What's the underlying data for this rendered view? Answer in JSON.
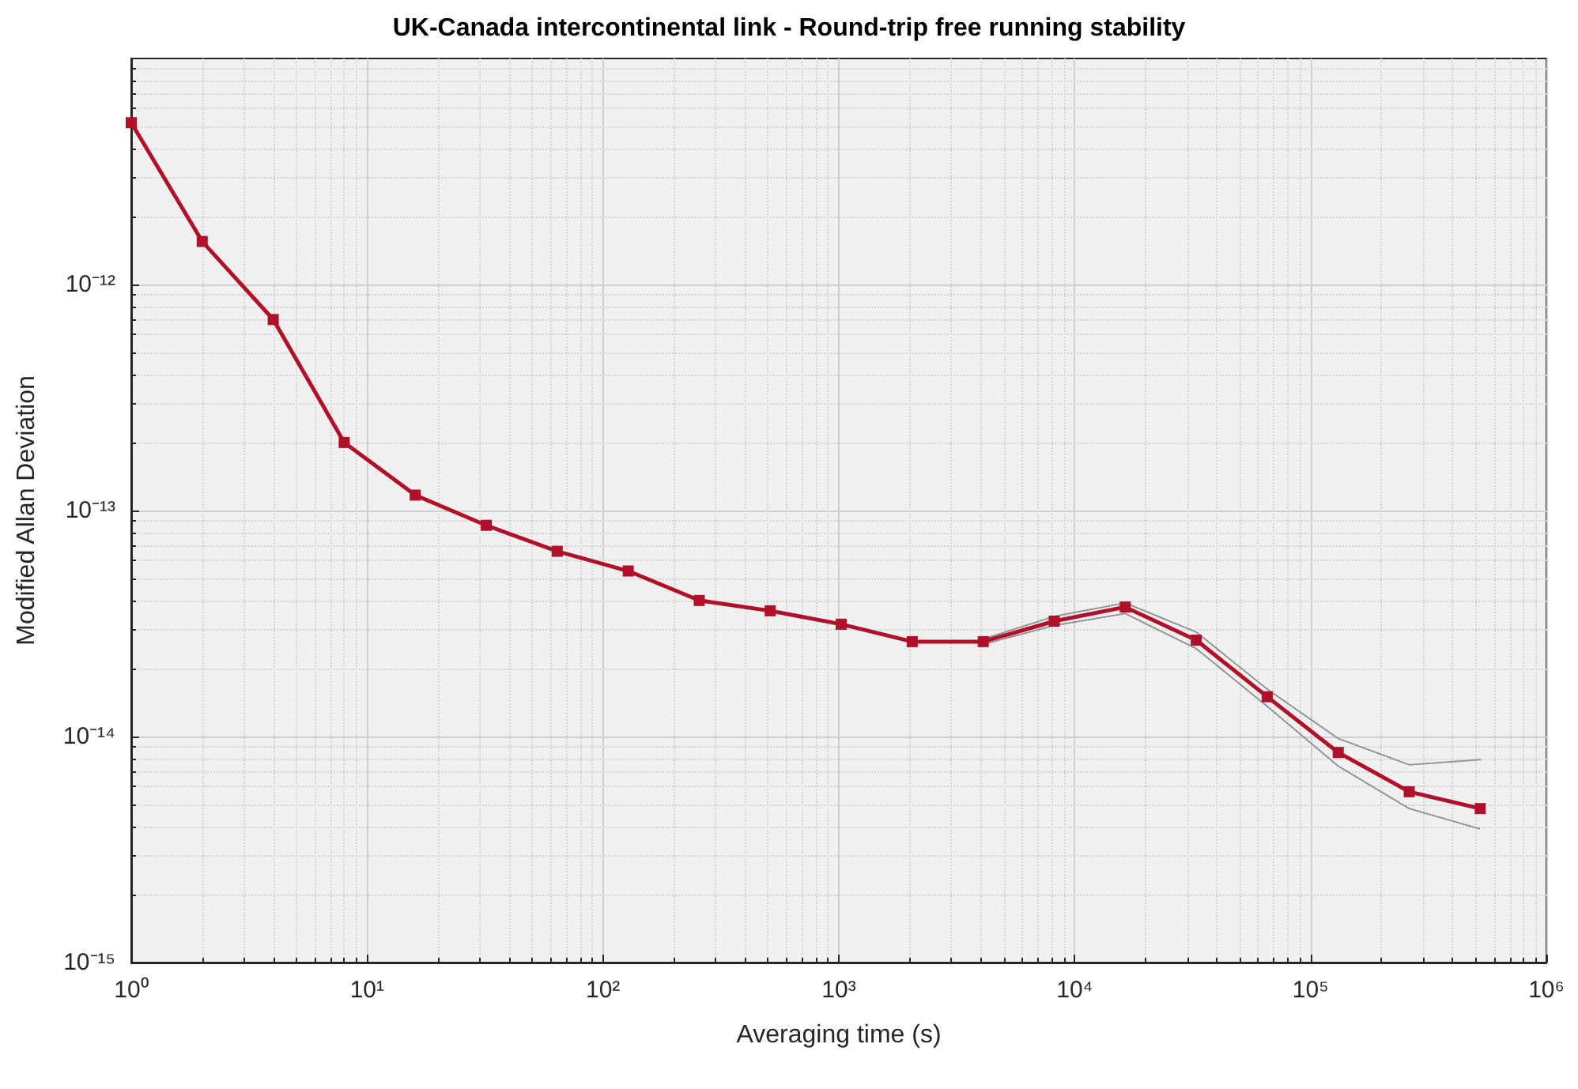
{
  "chart_data": {
    "type": "line",
    "title": "UK-Canada intercontinental link - Round-trip free running stability",
    "xlabel": "Averaging time (s)",
    "ylabel": "Modified Allan Deviation",
    "x": [
      1,
      2,
      4,
      8,
      16,
      32,
      64,
      128,
      256,
      512,
      1024,
      2048,
      4096,
      8192,
      16384,
      32768,
      65536,
      131072,
      262144,
      524288
    ],
    "series": [
      {
        "type": "line",
        "color": "#8c8c8c",
        "line_style": "dotted",
        "marker": "none",
        "x": [
          4096,
          8192,
          16384,
          32768,
          65536,
          131072,
          262144,
          524288
        ],
        "values": [
          2.56e-14,
          3.1e-14,
          3.5e-14,
          2.45e-14,
          1.36e-14,
          7.4e-15,
          4.8e-15,
          3.9e-15
        ]
      },
      {
        "type": "line",
        "color": "#8c8c8c",
        "line_style": "dotted",
        "marker": "none",
        "x": [
          4096,
          8192,
          16384,
          32768,
          65536,
          131072,
          262144,
          524288
        ],
        "values": [
          2.7e-14,
          3.4e-14,
          3.9e-14,
          2.9e-14,
          1.62e-14,
          9.8e-15,
          7.5e-15,
          7.9e-15
        ]
      },
      {
        "color": "#b0102a",
        "values": [
          5.2e-12,
          1.55e-12,
          7e-13,
          2e-13,
          1.17e-13,
          8.6e-14,
          6.6e-14,
          5.4e-14,
          4e-14,
          3.6e-14,
          3.14e-14,
          2.63e-14,
          2.63e-14,
          3.24e-14,
          3.74e-14,
          2.67e-14,
          1.5e-14,
          8.5e-15,
          5.7e-15,
          4.8e-15
        ]
      }
    ],
    "log": "xy",
    "xlim": [
      1,
      1000000
    ],
    "ylim": [
      1e-15,
      1e-11
    ],
    "xticks": [
      {
        "value": 1,
        "label": "10⁰"
      },
      {
        "value": 10,
        "label": "10¹"
      },
      {
        "value": 100,
        "label": "10²"
      },
      {
        "value": 1000,
        "label": "10³"
      },
      {
        "value": 10000,
        "label": "10⁴"
      },
      {
        "value": 100000,
        "label": "10⁵"
      },
      {
        "value": 1000000,
        "label": "10⁶"
      }
    ],
    "yticks": [
      {
        "value": 1e-15,
        "label": "10⁻¹⁵"
      },
      {
        "value": 1e-14,
        "label": "10⁻¹⁴"
      },
      {
        "value": 1e-13,
        "label": "10⁻¹³"
      },
      {
        "value": 1e-12,
        "label": "10⁻¹²"
      }
    ],
    "grid": true,
    "marker": "square",
    "line_style": "solid"
  }
}
